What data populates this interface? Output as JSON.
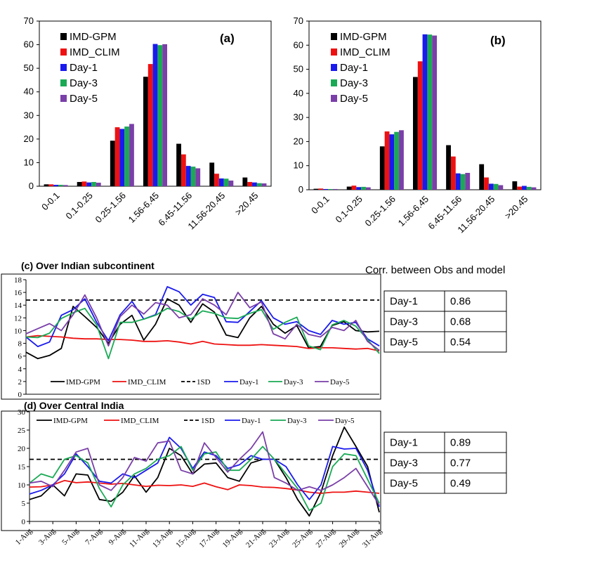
{
  "colors": {
    "IMD-GPM": "#000000",
    "IMD_CLIM": "#ee1111",
    "Day-1": "#1a1aee",
    "Day-3": "#1aaa55",
    "Day-5": "#7a3fa8",
    "1SD": "#000000"
  },
  "chart_data": [
    {
      "id": "a",
      "type": "bar",
      "panel_label": "(a)",
      "title": "",
      "xlabel": "",
      "ylabel": "",
      "ylim": [
        0,
        70
      ],
      "yticks": [
        0,
        10,
        20,
        30,
        40,
        50,
        60,
        70
      ],
      "grid": false,
      "legend": "top-left",
      "categories": [
        "0-0.1",
        "0.1-0.25",
        "0.25-1.56",
        "1.56-6.45",
        "6.45-11.56",
        "11.56-20.45",
        ">20.45"
      ],
      "series": [
        {
          "name": "IMD-GPM",
          "values": [
            0.8,
            1.8,
            19.3,
            46.4,
            18.0,
            10.0,
            3.7
          ]
        },
        {
          "name": "IMD_CLIM",
          "values": [
            0.8,
            2.0,
            25.0,
            51.8,
            13.5,
            5.3,
            1.8
          ]
        },
        {
          "name": "Day-1",
          "values": [
            0.6,
            1.6,
            24.3,
            60.3,
            8.6,
            3.3,
            1.6
          ]
        },
        {
          "name": "Day-3",
          "values": [
            0.6,
            1.8,
            25.3,
            59.8,
            8.3,
            3.2,
            1.3
          ]
        },
        {
          "name": "Day-5",
          "values": [
            0.5,
            1.5,
            26.4,
            60.2,
            7.6,
            2.4,
            1.2
          ]
        }
      ]
    },
    {
      "id": "b",
      "type": "bar",
      "panel_label": "(b)",
      "title": "",
      "xlabel": "",
      "ylabel": "",
      "ylim": [
        0,
        70
      ],
      "yticks": [
        0,
        10,
        20,
        30,
        40,
        50,
        60,
        70
      ],
      "grid": false,
      "legend": "top-left",
      "categories": [
        "0-0.1",
        "0.1-0.25",
        "0.25-1.56",
        "1.56-6.45",
        "6.45-11.56",
        "11.56-20.45",
        ">20.45"
      ],
      "series": [
        {
          "name": "IMD-GPM",
          "values": [
            0.4,
            1.3,
            18.0,
            46.8,
            18.5,
            10.6,
            3.5
          ]
        },
        {
          "name": "IMD_CLIM",
          "values": [
            0.5,
            1.7,
            24.2,
            53.3,
            13.8,
            5.1,
            1.3
          ]
        },
        {
          "name": "Day-1",
          "values": [
            0.3,
            1.1,
            23.0,
            64.5,
            6.8,
            2.5,
            1.6
          ]
        },
        {
          "name": "Day-3",
          "values": [
            0.3,
            1.2,
            24.0,
            64.4,
            6.5,
            2.4,
            1.2
          ]
        },
        {
          "name": "Day-5",
          "values": [
            0.3,
            1.0,
            24.7,
            64.0,
            7.0,
            1.9,
            1.0
          ]
        }
      ]
    },
    {
      "id": "c",
      "type": "line",
      "title": "(c) Over Indian subcontinent",
      "xlabel": "",
      "ylabel": "",
      "ylim": [
        0,
        18
      ],
      "yticks": [
        0,
        2,
        4,
        6,
        8,
        10,
        12,
        14,
        16,
        18
      ],
      "grid": false,
      "legend": "bottom",
      "x": [
        1,
        2,
        3,
        4,
        5,
        6,
        7,
        8,
        9,
        10,
        11,
        12,
        13,
        14,
        15,
        16,
        17,
        18,
        19,
        20,
        21,
        22,
        23,
        24,
        25,
        26,
        27,
        28,
        29,
        30,
        31
      ],
      "series": [
        {
          "name": "IMD-GPM",
          "style": "solid",
          "values": [
            6.6,
            5.6,
            6.1,
            7.2,
            13.8,
            12.2,
            10.5,
            8.0,
            11.0,
            12.4,
            8.5,
            11.0,
            15.0,
            14.0,
            11.3,
            14.2,
            12.9,
            9.3,
            8.9,
            12.0,
            13.8,
            11.0,
            9.6,
            10.8,
            7.3,
            7.5,
            10.8,
            11.4,
            10.0,
            9.8,
            9.9
          ]
        },
        {
          "name": "IMD_CLIM",
          "style": "solid",
          "values": [
            9.0,
            9.2,
            9.1,
            9.0,
            8.8,
            8.7,
            8.7,
            8.6,
            8.6,
            8.5,
            8.3,
            8.3,
            8.4,
            8.2,
            7.9,
            8.3,
            7.9,
            7.8,
            7.7,
            7.7,
            7.8,
            7.7,
            7.6,
            7.5,
            7.2,
            7.3,
            7.3,
            7.2,
            7.1,
            7.2,
            6.8
          ]
        },
        {
          "name": "1SD",
          "style": "dashed",
          "values": [
            14.8,
            14.8,
            14.8,
            14.8,
            14.8,
            14.8,
            14.8,
            14.8,
            14.8,
            14.8,
            14.8,
            14.8,
            14.8,
            14.8,
            14.8,
            14.8,
            14.8,
            14.8,
            14.8,
            14.8,
            14.8,
            14.8,
            14.8,
            14.8,
            14.8,
            14.8,
            14.8,
            14.8,
            14.8,
            14.8,
            14.8
          ]
        },
        {
          "name": "Day-1",
          "style": "solid",
          "values": [
            9.0,
            7.5,
            8.2,
            12.4,
            13.3,
            15.0,
            11.3,
            8.4,
            12.5,
            14.6,
            11.8,
            12.5,
            16.9,
            16.1,
            14.0,
            15.7,
            15.2,
            11.4,
            11.3,
            13.0,
            14.7,
            12.0,
            11.0,
            11.4,
            10.0,
            9.4,
            11.6,
            11.0,
            11.3,
            8.7,
            7.6
          ]
        },
        {
          "name": "Day-3",
          "style": "solid",
          "values": [
            9.0,
            8.9,
            9.6,
            11.9,
            12.8,
            13.5,
            10.9,
            5.6,
            11.3,
            11.3,
            11.8,
            12.4,
            13.5,
            13.0,
            11.8,
            13.1,
            12.7,
            12.0,
            11.9,
            12.7,
            13.3,
            10.2,
            11.3,
            12.1,
            7.6,
            7.0,
            10.9,
            11.6,
            10.7,
            8.6,
            6.4
          ]
        },
        {
          "name": "Day-5",
          "style": "solid",
          "values": [
            9.5,
            10.3,
            11.1,
            10.0,
            12.5,
            15.6,
            12.0,
            7.6,
            12.2,
            14.0,
            12.6,
            14.4,
            14.0,
            12.0,
            12.5,
            15.0,
            14.0,
            12.5,
            16.0,
            13.6,
            14.5,
            9.5,
            8.7,
            11.0,
            9.4,
            9.0,
            10.5,
            10.0,
            11.6,
            8.3,
            6.9
          ]
        }
      ]
    },
    {
      "id": "d",
      "type": "line",
      "title": "(d) Over Central India",
      "xlabel": "",
      "ylabel": "",
      "ylim": [
        0,
        30
      ],
      "yticks": [
        0,
        5,
        10,
        15,
        20,
        25,
        30
      ],
      "grid": false,
      "legend": "top",
      "x": [
        "1-Aug",
        "2-Aug",
        "3-Aug",
        "4-Aug",
        "5-Aug",
        "6-Aug",
        "7-Aug",
        "8-Aug",
        "9-Aug",
        "10-Aug",
        "11-Aug",
        "12-Aug",
        "13-Aug",
        "14-Aug",
        "15-Aug",
        "16-Aug",
        "17-Aug",
        "18-Aug",
        "19-Aug",
        "20-Aug",
        "21-Aug",
        "22-Aug",
        "23-Aug",
        "24-Aug",
        "25-Aug",
        "26-Aug",
        "27-Aug",
        "28-Aug",
        "29-Aug",
        "30-Aug",
        "31-Aug"
      ],
      "xticks": [
        "1-Aug",
        "3-Aug",
        "5-Aug",
        "7-Aug",
        "9-Aug",
        "11-Aug",
        "13-Aug",
        "15-Aug",
        "17-Aug",
        "19-Aug",
        "21-Aug",
        "23-Aug",
        "25-Aug",
        "27-Aug",
        "29-Aug",
        "31-Aug"
      ],
      "series": [
        {
          "name": "IMD-GPM",
          "style": "solid",
          "values": [
            6.0,
            7.0,
            10.0,
            7.0,
            13.0,
            12.7,
            6.0,
            5.5,
            8.0,
            12.5,
            8.0,
            12.0,
            20.0,
            18.0,
            13.0,
            15.7,
            16.0,
            12.0,
            11.0,
            16.0,
            17.0,
            17.0,
            12.0,
            6.0,
            1.5,
            8.0,
            18.0,
            25.8,
            20.5,
            15.0,
            2.5
          ]
        },
        {
          "name": "IMD_CLIM",
          "style": "solid",
          "values": [
            9.4,
            9.5,
            10.0,
            11.2,
            10.6,
            10.8,
            10.5,
            10.2,
            10.4,
            10.0,
            9.6,
            9.9,
            9.8,
            10.0,
            9.6,
            10.5,
            9.5,
            8.7,
            10.0,
            9.8,
            9.4,
            9.3,
            9.0,
            8.6,
            8.0,
            7.7,
            8.0,
            8.0,
            8.3,
            8.0,
            7.7
          ]
        },
        {
          "name": "1SD",
          "style": "dashed",
          "values": [
            17.0,
            17.0,
            17.0,
            17.0,
            17.0,
            17.0,
            17.0,
            17.0,
            17.0,
            17.0,
            17.0,
            17.0,
            17.0,
            17.0,
            17.0,
            17.0,
            17.0,
            17.0,
            17.0,
            17.0,
            17.0,
            17.0,
            17.0,
            17.0,
            17.0,
            17.0,
            17.0,
            17.0,
            17.0,
            17.0,
            17.0
          ]
        },
        {
          "name": "Day-1",
          "style": "solid",
          "values": [
            7.5,
            8.5,
            10.0,
            13.0,
            18.5,
            15.0,
            11.0,
            10.5,
            13.0,
            12.0,
            14.0,
            16.0,
            23.0,
            20.0,
            14.5,
            19.0,
            18.0,
            14.5,
            15.5,
            18.0,
            17.0,
            17.0,
            15.0,
            10.0,
            6.0,
            10.0,
            20.5,
            19.8,
            20.0,
            14.0,
            4.0
          ]
        },
        {
          "name": "Day-3",
          "style": "solid",
          "values": [
            10.5,
            13.0,
            12.0,
            17.0,
            18.0,
            16.0,
            9.0,
            4.0,
            10.0,
            13.0,
            14.5,
            17.0,
            18.0,
            20.5,
            14.0,
            18.5,
            19.0,
            14.0,
            14.0,
            17.0,
            20.5,
            17.0,
            13.0,
            9.0,
            3.0,
            5.0,
            15.0,
            18.5,
            18.0,
            11.5,
            5.0
          ]
        },
        {
          "name": "Day-5",
          "style": "solid",
          "values": [
            10.5,
            11.0,
            9.5,
            14.0,
            19.0,
            20.0,
            10.0,
            8.5,
            12.0,
            17.5,
            16.5,
            21.5,
            22.0,
            14.0,
            13.0,
            21.5,
            17.5,
            13.5,
            17.0,
            20.0,
            24.5,
            12.0,
            10.5,
            8.5,
            9.5,
            8.5,
            10.0,
            12.0,
            14.5,
            9.5,
            4.5
          ]
        }
      ]
    }
  ],
  "corr_heading": "Corr. between Obs and model",
  "corr_table_c": [
    {
      "label": "Day-1",
      "value": "0.86"
    },
    {
      "label": "Day-3",
      "value": "0.68"
    },
    {
      "label": "Day-5",
      "value": "0.54"
    }
  ],
  "corr_table_d": [
    {
      "label": "Day-1",
      "value": "0.89"
    },
    {
      "label": "Day-3",
      "value": "0.77"
    },
    {
      "label": "Day-5",
      "value": "0.49"
    }
  ]
}
